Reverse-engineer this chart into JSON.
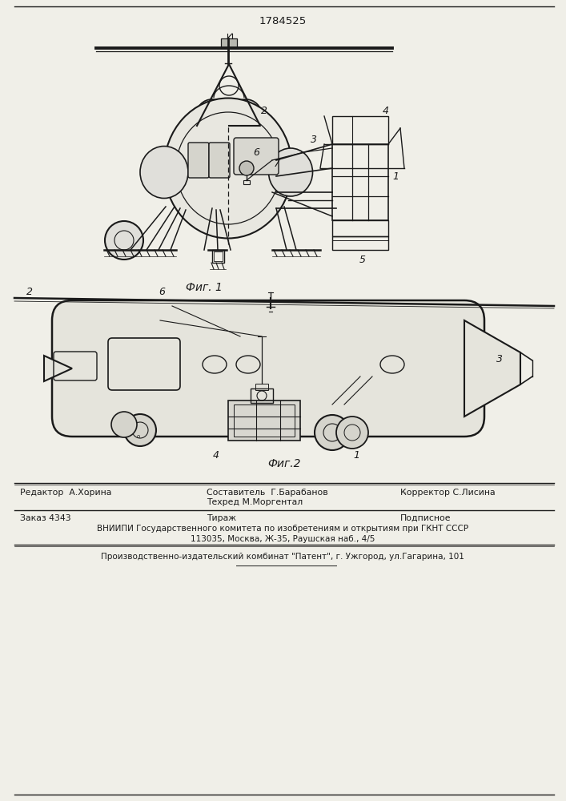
{
  "patent_number": "1784525",
  "fig1_label": "Фиг. 1",
  "fig2_label": "Фиг.2",
  "bg_color": "#f0efe8",
  "line_color": "#1a1a1a",
  "editor_line": "Редактор  А.Хорина",
  "composer_line1": "Составитель  Г.Барабанов",
  "techred_line": "Техред М.Моргентал",
  "corrector_line": "Корректор С.Лисина",
  "order_line": "Заказ 4343",
  "tirazh_line": "Тираж",
  "podpisnoe_line": "Подписное",
  "vniiipi_line": "ВНИИПИ Государственного комитета по изобретениям и открытиям при ГКНТ СССР",
  "address_line": "113035, Москва, Ж-35, Раушская наб., 4/5",
  "patent_line": "Производственно-издательский комбинат \"Патент\", г. Ужгород, ул.Гагарина, 101"
}
